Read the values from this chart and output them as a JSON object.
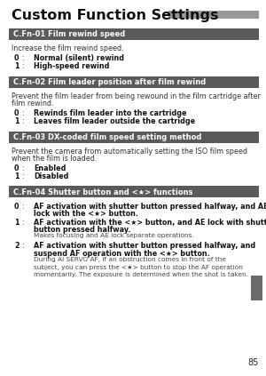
{
  "title": "Custom Function Settings",
  "title_fontsize": 11.5,
  "page_number": "85",
  "bg_color": "#ffffff",
  "header_bg": "#5a5a5a",
  "header_text_color": "#ffffff",
  "header_fontsize": 6.0,
  "body_fontsize": 5.8,
  "bold_fontsize": 5.8,
  "sections": [
    {
      "header": "C.Fn-01 Film rewind speed",
      "body_plain": "Increase the film rewind speed.",
      "items": [
        {
          "num": "0",
          "bold": "Normal (silent) rewind",
          "plain": ""
        },
        {
          "num": "1",
          "bold": "High-speed rewind",
          "plain": ""
        }
      ]
    },
    {
      "header": "C.Fn-02 Film leader position after film rewind",
      "body_plain": "Prevent the film leader from being rewound in the film cartridge after\nfilm rewind.",
      "items": [
        {
          "num": "0",
          "bold": "Rewinds film leader into the cartridge",
          "plain": ""
        },
        {
          "num": "1",
          "bold": "Leaves film leader outside the cartridge",
          "plain": ""
        }
      ]
    },
    {
      "header": "C.Fn-03 DX-coded film speed setting method",
      "body_plain": "Prevent the camera from automatically setting the ISO film speed\nwhen the film is loaded.",
      "items": [
        {
          "num": "0",
          "bold": "Enabled",
          "plain": ""
        },
        {
          "num": "1",
          "bold": "Disabled",
          "plain": ""
        }
      ]
    },
    {
      "header": "C.Fn-04 Shutter button and <★> functions",
      "body_plain": "",
      "items": [
        {
          "num": "0",
          "bold": "AF activation with shutter button pressed halfway, and AE\nlock with the <★> button.",
          "plain": ""
        },
        {
          "num": "1",
          "bold": "AF activation with the <★> button, and AE lock with shutter\nbutton pressed halfway.",
          "plain": "Makes focusing and AE lock separate operations."
        },
        {
          "num": "2",
          "bold": "AF activation with shutter button pressed halfway, and\nsuspend AF operation with the <★> button.",
          "plain": "During AI SERVO AF, if an obstruction comes in front of the\nsubject, you can press the <★> button to stop the AF operation\nmomentarily. The exposure is determined when the shot is taken."
        }
      ]
    }
  ],
  "sidebar_color": "#6a6a6a",
  "title_bar_color": "#999999"
}
